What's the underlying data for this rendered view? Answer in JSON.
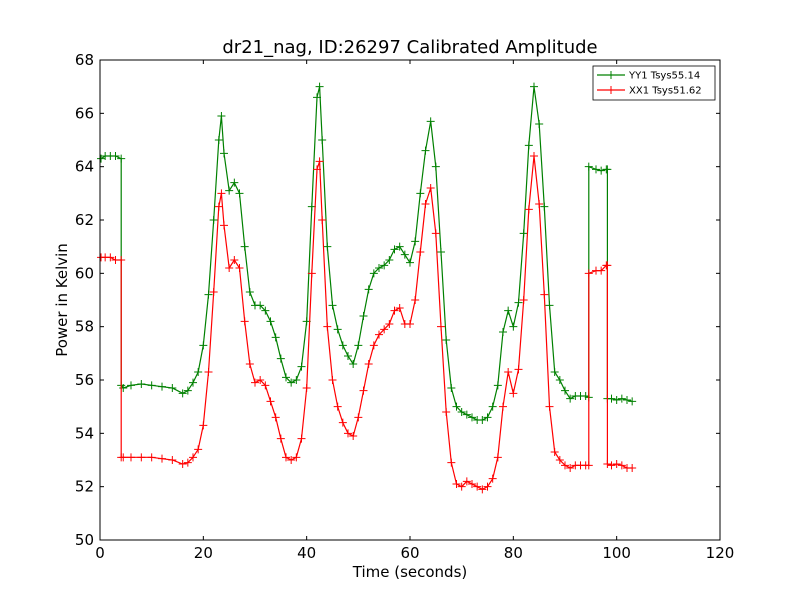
{
  "chart_data": {
    "type": "line",
    "title": "dr21_nag, ID:26297 Calibrated Amplitude",
    "xlabel": "Time (seconds)",
    "ylabel": "Power in Kelvin",
    "xlim": [
      0,
      120
    ],
    "ylim": [
      50,
      68
    ],
    "xticks": [
      0,
      20,
      40,
      60,
      80,
      100,
      120
    ],
    "yticks": [
      50,
      52,
      54,
      56,
      58,
      60,
      62,
      64,
      66,
      68
    ],
    "xtick_labels": [
      "0",
      "20",
      "40",
      "60",
      "80",
      "100",
      "120"
    ],
    "ytick_labels": [
      "50",
      "52",
      "54",
      "56",
      "58",
      "60",
      "62",
      "64",
      "66",
      "68"
    ],
    "grid": false,
    "legend_position": "top-right",
    "marker": "+",
    "series": [
      {
        "name": "YY1 Tsys55.14",
        "color": "#008000",
        "x": [
          0.2,
          1,
          2,
          3,
          4.1,
          4.1,
          4.5,
          6,
          8,
          10,
          12,
          14,
          16,
          17,
          18,
          19,
          20,
          21,
          22,
          23,
          23.5,
          24,
          25,
          26,
          27,
          28,
          29,
          30,
          31,
          32,
          33,
          34,
          35,
          36,
          37,
          38,
          39,
          40,
          41,
          42,
          42.5,
          43,
          44,
          45,
          46,
          47,
          48,
          49,
          50,
          51,
          52,
          53,
          54,
          55,
          56,
          57,
          58,
          59,
          60,
          61,
          62,
          63,
          64,
          65,
          66,
          67,
          68,
          69,
          70,
          71,
          72,
          73,
          74,
          75,
          76,
          77,
          78,
          79,
          80,
          81,
          82,
          83,
          84,
          85,
          86,
          87,
          88,
          89,
          90,
          91,
          92,
          93,
          94,
          94.6,
          94.6,
          96,
          97,
          98,
          98.2,
          98.2,
          99,
          100,
          101,
          102,
          103
        ],
        "y": [
          64.3,
          64.4,
          64.4,
          64.4,
          64.3,
          55.8,
          55.7,
          55.8,
          55.85,
          55.8,
          55.75,
          55.7,
          55.5,
          55.6,
          55.9,
          56.3,
          57.3,
          59.2,
          62,
          65,
          65.9,
          64.5,
          63.1,
          63.4,
          63,
          61,
          59.3,
          58.8,
          58.8,
          58.6,
          58.2,
          57.6,
          56.8,
          56.1,
          55.9,
          56.0,
          56.5,
          58.2,
          62.5,
          66.6,
          67.0,
          65.0,
          61.0,
          58.8,
          57.9,
          57.3,
          56.9,
          56.6,
          57.3,
          58.4,
          59.4,
          60.0,
          60.2,
          60.3,
          60.5,
          60.9,
          61.0,
          60.7,
          60.4,
          61.2,
          63.0,
          64.6,
          65.7,
          64.0,
          60.8,
          57.5,
          55.7,
          55.0,
          54.8,
          54.7,
          54.6,
          54.5,
          54.5,
          54.6,
          55.0,
          55.8,
          57.8,
          58.6,
          58.0,
          58.9,
          61.5,
          64.8,
          67.0,
          65.6,
          62.5,
          58.8,
          56.3,
          56.0,
          55.6,
          55.3,
          55.4,
          55.4,
          55.4,
          55.35,
          64.0,
          63.9,
          63.85,
          63.9,
          63.9,
          55.3,
          55.3,
          55.25,
          55.3,
          55.25,
          55.2
        ]
      },
      {
        "name": "XX1 Tsys51.62",
        "color": "#ff0000",
        "x": [
          0.2,
          1,
          2,
          3,
          4.1,
          4.1,
          4.5,
          6,
          8,
          10,
          12,
          14,
          16,
          17,
          18,
          19,
          20,
          21,
          22,
          23,
          23.5,
          24,
          25,
          26,
          27,
          28,
          29,
          30,
          31,
          32,
          33,
          34,
          35,
          36,
          37,
          38,
          39,
          40,
          41,
          42,
          42.5,
          43,
          44,
          45,
          46,
          47,
          48,
          49,
          50,
          51,
          52,
          53,
          54,
          55,
          56,
          57,
          58,
          59,
          60,
          61,
          62,
          63,
          64,
          65,
          66,
          67,
          68,
          69,
          70,
          71,
          72,
          73,
          74,
          75,
          76,
          77,
          78,
          79,
          80,
          81,
          82,
          83,
          84,
          85,
          86,
          87,
          88,
          89,
          90,
          91,
          92,
          93,
          94,
          94.6,
          94.6,
          96,
          97,
          98,
          98.2,
          98.2,
          99,
          100,
          101,
          102,
          103
        ],
        "y": [
          60.6,
          60.6,
          60.6,
          60.5,
          60.5,
          53.1,
          53.1,
          53.1,
          53.1,
          53.1,
          53.05,
          53.0,
          52.85,
          52.9,
          53.1,
          53.4,
          54.3,
          56.3,
          59.3,
          62.5,
          63.0,
          61.8,
          60.2,
          60.5,
          60.2,
          58.2,
          56.6,
          55.9,
          56.0,
          55.8,
          55.2,
          54.6,
          53.8,
          53.1,
          53.0,
          53.1,
          53.8,
          55.7,
          60.0,
          63.9,
          64.2,
          62.0,
          58.0,
          56.0,
          55.0,
          54.4,
          54.0,
          53.9,
          54.6,
          55.6,
          56.6,
          57.3,
          57.7,
          57.9,
          58.1,
          58.6,
          58.7,
          58.1,
          58.1,
          59.0,
          60.8,
          62.6,
          63.2,
          61.5,
          58.0,
          54.8,
          52.9,
          52.1,
          52.0,
          52.2,
          52.1,
          52.0,
          51.9,
          52.0,
          52.3,
          53.1,
          55.0,
          56.3,
          55.5,
          56.4,
          59.0,
          62.4,
          64.4,
          62.6,
          59.2,
          55.0,
          53.3,
          53.0,
          52.8,
          52.7,
          52.8,
          52.8,
          52.8,
          52.8,
          60.0,
          60.1,
          60.1,
          60.3,
          60.3,
          52.85,
          52.8,
          52.85,
          52.8,
          52.7,
          52.7
        ]
      }
    ]
  }
}
